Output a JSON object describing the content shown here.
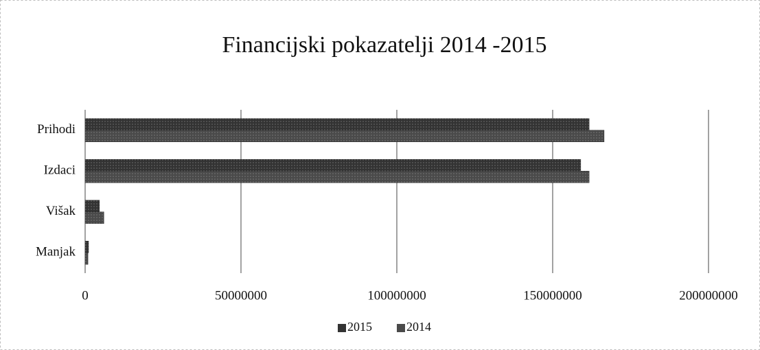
{
  "chart_data": {
    "type": "bar",
    "orientation": "horizontal",
    "title": "Financijski pokazatelji 2014 -2015",
    "categories": [
      "Prihodi",
      "Izdaci",
      "Višak",
      "Manjak"
    ],
    "series": [
      {
        "name": "2015",
        "color": "#333333",
        "values": [
          161700000,
          159000000,
          4600000,
          1100000
        ]
      },
      {
        "name": "2014",
        "color": "#4a4a4a",
        "values": [
          166500000,
          161700000,
          6000000,
          900000
        ]
      }
    ],
    "xlim": [
      0,
      200000000
    ],
    "xticks": [
      0,
      50000000,
      100000000,
      150000000,
      200000000
    ],
    "grid": true,
    "legend": "bottom"
  }
}
